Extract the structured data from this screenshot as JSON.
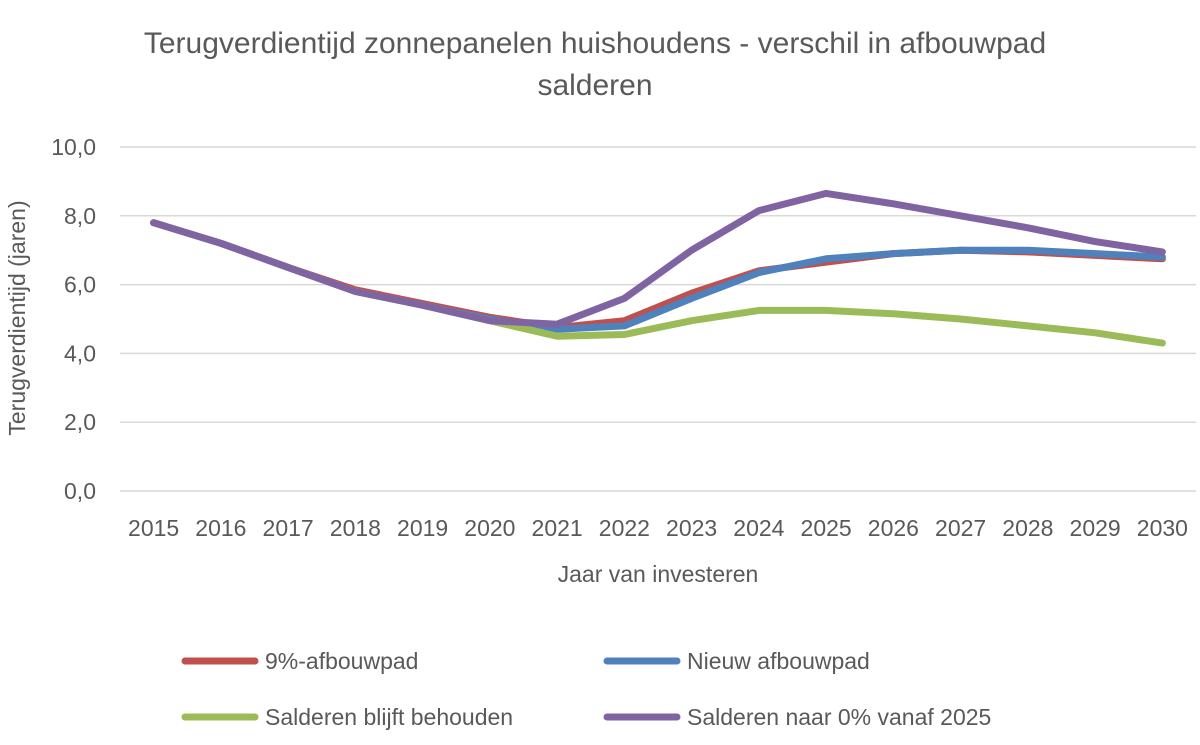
{
  "chart_data": {
    "type": "line",
    "title_line1": "Terugverdientijd zonnepanelen huishoudens - verschil in afbouwpad",
    "title_line2": "salderen",
    "xlabel": "Jaar van investeren",
    "ylabel": "Terugverdientijd (jaren)",
    "ylim": [
      0,
      10
    ],
    "yticks": [
      "0,0",
      "2,0",
      "4,0",
      "6,0",
      "8,0",
      "10,0"
    ],
    "ytick_values": [
      0,
      2,
      4,
      6,
      8,
      10
    ],
    "categories": [
      "2015",
      "2016",
      "2017",
      "2018",
      "2019",
      "2020",
      "2021",
      "2022",
      "2023",
      "2024",
      "2025",
      "2026",
      "2027",
      "2028",
      "2029",
      "2030"
    ],
    "grid": true,
    "legend_position": "bottom",
    "series": [
      {
        "name": "9%-afbouwpad",
        "color": "#c0504d",
        "values": [
          7.8,
          7.2,
          6.5,
          5.85,
          5.45,
          5.05,
          4.75,
          4.95,
          5.75,
          6.4,
          6.65,
          6.9,
          7.0,
          6.95,
          6.85,
          6.75
        ]
      },
      {
        "name": "Nieuw afbouwpad",
        "color": "#4f81bd",
        "values": [
          7.8,
          7.2,
          6.5,
          5.8,
          5.4,
          5.0,
          4.7,
          4.8,
          5.6,
          6.35,
          6.75,
          6.9,
          7.0,
          7.0,
          6.9,
          6.8
        ]
      },
      {
        "name": "Salderen blijft behouden",
        "color": "#9bbb59",
        "values": [
          7.8,
          7.2,
          6.5,
          5.8,
          5.4,
          4.95,
          4.5,
          4.55,
          4.95,
          5.25,
          5.25,
          5.15,
          5.0,
          4.8,
          4.6,
          4.3
        ]
      },
      {
        "name": "Salderen naar 0% vanaf 2025",
        "color": "#8064a2",
        "values": [
          7.8,
          7.2,
          6.5,
          5.8,
          5.4,
          4.95,
          4.85,
          5.6,
          7.0,
          8.15,
          8.65,
          8.35,
          8.0,
          7.65,
          7.25,
          6.95
        ]
      }
    ]
  }
}
